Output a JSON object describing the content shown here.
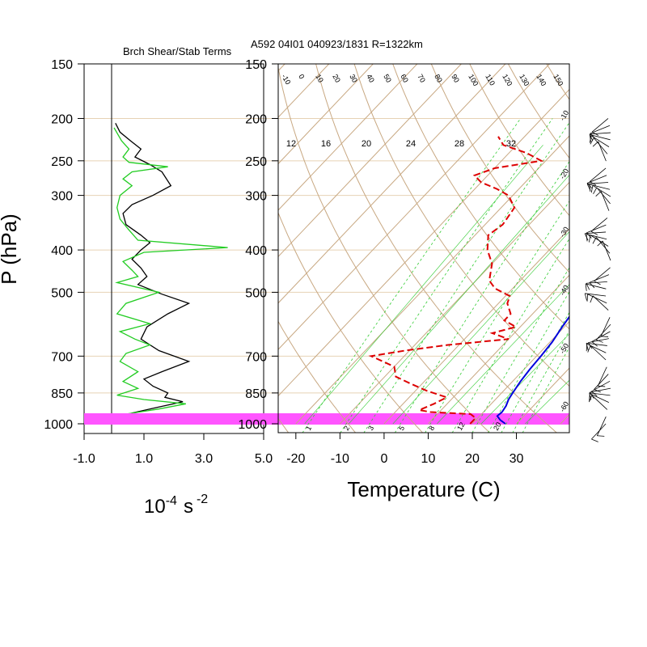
{
  "header": {
    "left_title": "Brch Shear/Stab Terms",
    "right_title": "A592 04I01 040923/1831 R=1322km"
  },
  "colors": {
    "isopleth": "#c8a882",
    "isobar_grid": "#e6d2b4",
    "mixing_ratio": "#33cc33",
    "temperature": "#0000dd",
    "dewpoint": "#dd0000",
    "shear_term": "#000000",
    "stab_term": "#22cc22",
    "highlight_band": "#ff55ff"
  },
  "chart_data": [
    {
      "type": "line",
      "name": "branch-shear-stability-profile",
      "title": "Brch Shear/Stab Terms",
      "ylabel": "P (hPa)",
      "xlabel_base": "10",
      "xlabel_exp": "-4",
      "xlabel_unit": "s",
      "xlabel_unit_exp": "-2",
      "xlim": [
        -1.0,
        5.0
      ],
      "ylim": [
        1000,
        150
      ],
      "y_scale": "log",
      "x_ticks": [
        "-1.0",
        "1.0",
        "3.0",
        "5.0"
      ],
      "x_tick_values": [
        -1,
        1,
        3,
        5
      ],
      "y_ticks": [
        150,
        200,
        250,
        300,
        400,
        500,
        700,
        850,
        1000
      ],
      "y_tick_labels": [
        "150",
        "200",
        "250",
        "300",
        "400",
        "500",
        "700",
        "850",
        "1000"
      ],
      "series": [
        {
          "key": "shear",
          "points": [
            [
              0.05,
              205
            ],
            [
              0.2,
              215
            ],
            [
              0.55,
              225
            ],
            [
              0.9,
              235
            ],
            [
              0.7,
              245
            ],
            [
              1.2,
              255
            ],
            [
              1.6,
              265
            ],
            [
              1.9,
              285
            ],
            [
              1.3,
              300
            ],
            [
              0.6,
              315
            ],
            [
              0.3,
              330
            ],
            [
              0.4,
              350
            ],
            [
              0.9,
              370
            ],
            [
              1.2,
              385
            ],
            [
              0.9,
              400
            ],
            [
              0.6,
              420
            ],
            [
              0.9,
              440
            ],
            [
              1.1,
              460
            ],
            [
              0.8,
              480
            ],
            [
              1.6,
              505
            ],
            [
              2.5,
              530
            ],
            [
              1.8,
              560
            ],
            [
              1.1,
              600
            ],
            [
              0.9,
              640
            ],
            [
              1.5,
              680
            ],
            [
              2.5,
              720
            ],
            [
              1.6,
              760
            ],
            [
              1.0,
              790
            ],
            [
              1.3,
              820
            ],
            [
              1.8,
              850
            ],
            [
              1.7,
              870
            ],
            [
              2.3,
              890
            ],
            [
              1.5,
              915
            ],
            [
              0.6,
              945
            ],
            [
              0.2,
              975
            ],
            [
              0.1,
              995
            ]
          ]
        },
        {
          "key": "stability",
          "points": [
            [
              0.0,
              210
            ],
            [
              0.25,
              225
            ],
            [
              0.5,
              235
            ],
            [
              0.3,
              245
            ],
            [
              0.5,
              252
            ],
            [
              1.8,
              258
            ],
            [
              0.6,
              265
            ],
            [
              0.3,
              275
            ],
            [
              0.6,
              285
            ],
            [
              0.2,
              300
            ],
            [
              0.1,
              320
            ],
            [
              0.2,
              340
            ],
            [
              0.5,
              360
            ],
            [
              0.8,
              380
            ],
            [
              3.8,
              395
            ],
            [
              1.0,
              405
            ],
            [
              0.3,
              425
            ],
            [
              0.6,
              445
            ],
            [
              0.8,
              460
            ],
            [
              0.1,
              475
            ],
            [
              1.5,
              500
            ],
            [
              0.4,
              530
            ],
            [
              0.1,
              560
            ],
            [
              1.2,
              590
            ],
            [
              0.2,
              615
            ],
            [
              0.7,
              640
            ],
            [
              1.2,
              660
            ],
            [
              0.4,
              690
            ],
            [
              0.2,
              720
            ],
            [
              0.8,
              760
            ],
            [
              0.3,
              800
            ],
            [
              0.8,
              830
            ],
            [
              0.1,
              860
            ],
            [
              1.0,
              880
            ],
            [
              2.4,
              900
            ],
            [
              1.5,
              925
            ],
            [
              0.4,
              950
            ],
            [
              0.1,
              980
            ]
          ]
        }
      ]
    },
    {
      "type": "line",
      "name": "skew-t-log-p",
      "title": "A592 04I01 040923/1831 R=1322km",
      "xlabel": "Temperature (C)",
      "ylim": [
        1000,
        150
      ],
      "y_scale": "log",
      "xlim_at_1000hPa": [
        -24,
        42
      ],
      "x_ticks": [
        -20,
        -10,
        0,
        10,
        20,
        30
      ],
      "x_tick_labels": [
        "-20",
        "-10",
        "0",
        "10",
        "20",
        "30"
      ],
      "y_ticks": [
        150,
        200,
        250,
        300,
        400,
        500,
        700,
        850,
        1000
      ],
      "y_tick_labels": [
        "150",
        "200",
        "250",
        "300",
        "400",
        "500",
        "700",
        "850",
        "1000"
      ],
      "isotherm_labels": [
        "-10",
        "0",
        "10",
        "20",
        "30",
        "40",
        "50",
        "60",
        "70",
        "80",
        "90",
        "100",
        "110",
        "120",
        "130",
        "140",
        "150"
      ],
      "dry_adiabat_labels": [
        "-10",
        "-20",
        "-30",
        "-40",
        "-50",
        "-60",
        "-70",
        "-80"
      ],
      "mixing_ratio_labels": [
        "12",
        "16",
        "20",
        "24",
        "28",
        "32"
      ],
      "mixing_ratio_bottom_labels": [
        "1",
        "2",
        "3",
        "5",
        "8",
        "12",
        "20"
      ],
      "series": [
        {
          "key": "temperature",
          "style": "solid",
          "points": [
            [
              27.5,
              1000
            ],
            [
              25.5,
              980
            ],
            [
              24,
              960
            ],
            [
              24.2,
              940
            ],
            [
              23.8,
              910
            ],
            [
              23,
              880
            ],
            [
              22.5,
              850
            ],
            [
              21.8,
              800
            ],
            [
              21.3,
              750
            ],
            [
              21,
              700
            ],
            [
              20.5,
              650
            ],
            [
              19.5,
              600
            ],
            [
              18.8,
              560
            ],
            [
              18.7,
              520
            ],
            [
              19,
              500
            ],
            [
              17.8,
              470
            ],
            [
              15.5,
              440
            ],
            [
              12,
              400
            ],
            [
              8.5,
              360
            ],
            [
              5,
              330
            ],
            [
              2,
              300
            ],
            [
              -1.5,
              280
            ],
            [
              -4,
              260
            ],
            [
              -6.5,
              240
            ],
            [
              -10,
              220
            ],
            [
              -15,
              200
            ]
          ]
        },
        {
          "key": "dewpoint",
          "style": "dashed",
          "points": [
            [
              19.5,
              1000
            ],
            [
              19.5,
              970
            ],
            [
              17.5,
              950
            ],
            [
              8,
              940
            ],
            [
              5,
              930
            ],
            [
              7,
              900
            ],
            [
              8.5,
              870
            ],
            [
              2.5,
              840
            ],
            [
              -2.5,
              810
            ],
            [
              -7.5,
              780
            ],
            [
              -10,
              740
            ],
            [
              -17.5,
              700
            ],
            [
              -11,
              680
            ],
            [
              -2.5,
              660
            ],
            [
              10,
              640
            ],
            [
              5,
              620
            ],
            [
              9,
              600
            ],
            [
              5,
              580
            ],
            [
              5,
              560
            ],
            [
              2,
              530
            ],
            [
              1,
              510
            ],
            [
              -4,
              490
            ],
            [
              -7,
              470
            ],
            [
              -10,
              430
            ],
            [
              -14,
              400
            ],
            [
              -17,
              370
            ],
            [
              -16,
              350
            ],
            [
              -17,
              320
            ],
            [
              -21,
              300
            ],
            [
              -25,
              290
            ],
            [
              -30,
              280
            ],
            [
              -33,
              270
            ],
            [
              -30,
              260
            ],
            [
              -21,
              250
            ],
            [
              -26,
              240
            ],
            [
              -33,
              230
            ],
            [
              -36,
              220
            ]
          ]
        }
      ]
    }
  ],
  "wind_barbs": {
    "count": 44,
    "from_hpa": 200,
    "to_hpa": 1000
  }
}
